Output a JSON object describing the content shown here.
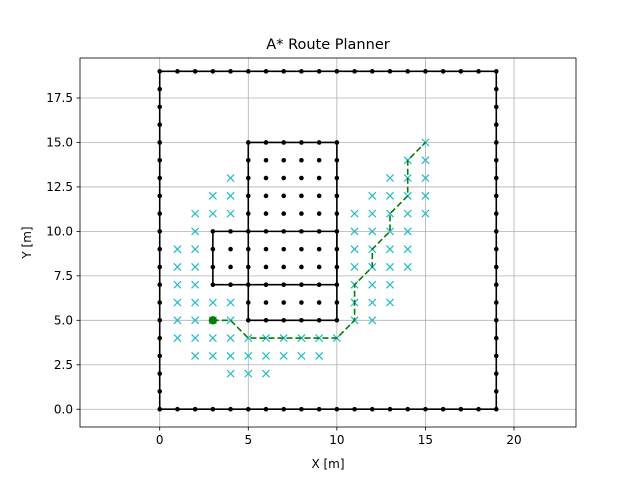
{
  "chart_data": {
    "type": "scatter",
    "title": "A* Route Planner",
    "xlabel": "X [m]",
    "ylabel": "Y [m]",
    "xlim": [
      -4.5,
      23.5
    ],
    "ylim": [
      -1,
      19.75
    ],
    "xticks": [
      0,
      5,
      10,
      15,
      20
    ],
    "xtick_labels": [
      "0",
      "5",
      "10",
      "15",
      "20"
    ],
    "yticks": [
      0,
      2.5,
      5,
      7.5,
      10,
      12.5,
      15,
      17.5
    ],
    "ytick_labels": [
      "0.0",
      "2.5",
      "5.0",
      "7.5",
      "10.0",
      "12.5",
      "15.0",
      "17.5"
    ],
    "grid": true,
    "colors": {
      "obstacle": "#000000",
      "explored": "#17becf",
      "path": "#008000",
      "start": "#008000"
    },
    "obstacle_boundary_lines": [
      [
        [
          0,
          0
        ],
        [
          19,
          0
        ],
        [
          19,
          19
        ],
        [
          0,
          19
        ],
        [
          0,
          0
        ]
      ],
      [
        [
          5,
          5
        ],
        [
          10,
          5
        ],
        [
          10,
          15
        ],
        [
          5,
          15
        ],
        [
          5,
          5
        ]
      ],
      [
        [
          3,
          7
        ],
        [
          10,
          7
        ],
        [
          10,
          10
        ],
        [
          3,
          10
        ],
        [
          3,
          7
        ]
      ]
    ],
    "obstacle_points": [
      [
        0,
        0
      ],
      [
        1,
        0
      ],
      [
        2,
        0
      ],
      [
        3,
        0
      ],
      [
        4,
        0
      ],
      [
        5,
        0
      ],
      [
        6,
        0
      ],
      [
        7,
        0
      ],
      [
        8,
        0
      ],
      [
        9,
        0
      ],
      [
        10,
        0
      ],
      [
        11,
        0
      ],
      [
        12,
        0
      ],
      [
        13,
        0
      ],
      [
        14,
        0
      ],
      [
        15,
        0
      ],
      [
        16,
        0
      ],
      [
        17,
        0
      ],
      [
        18,
        0
      ],
      [
        19,
        0
      ],
      [
        0,
        19
      ],
      [
        1,
        19
      ],
      [
        2,
        19
      ],
      [
        3,
        19
      ],
      [
        4,
        19
      ],
      [
        5,
        19
      ],
      [
        6,
        19
      ],
      [
        7,
        19
      ],
      [
        8,
        19
      ],
      [
        9,
        19
      ],
      [
        10,
        19
      ],
      [
        11,
        19
      ],
      [
        12,
        19
      ],
      [
        13,
        19
      ],
      [
        14,
        19
      ],
      [
        15,
        19
      ],
      [
        16,
        19
      ],
      [
        17,
        19
      ],
      [
        18,
        19
      ],
      [
        19,
        19
      ],
      [
        0,
        1
      ],
      [
        0,
        2
      ],
      [
        0,
        3
      ],
      [
        0,
        4
      ],
      [
        0,
        5
      ],
      [
        0,
        6
      ],
      [
        0,
        7
      ],
      [
        0,
        8
      ],
      [
        0,
        9
      ],
      [
        0,
        10
      ],
      [
        0,
        11
      ],
      [
        0,
        12
      ],
      [
        0,
        13
      ],
      [
        0,
        14
      ],
      [
        0,
        15
      ],
      [
        0,
        16
      ],
      [
        0,
        17
      ],
      [
        0,
        18
      ],
      [
        19,
        1
      ],
      [
        19,
        2
      ],
      [
        19,
        3
      ],
      [
        19,
        4
      ],
      [
        19,
        5
      ],
      [
        19,
        6
      ],
      [
        19,
        7
      ],
      [
        19,
        8
      ],
      [
        19,
        9
      ],
      [
        19,
        10
      ],
      [
        19,
        11
      ],
      [
        19,
        12
      ],
      [
        19,
        13
      ],
      [
        19,
        14
      ],
      [
        19,
        15
      ],
      [
        19,
        16
      ],
      [
        19,
        17
      ],
      [
        19,
        18
      ],
      [
        5,
        5
      ],
      [
        6,
        5
      ],
      [
        7,
        5
      ],
      [
        8,
        5
      ],
      [
        9,
        5
      ],
      [
        10,
        5
      ],
      [
        5,
        6
      ],
      [
        6,
        6
      ],
      [
        7,
        6
      ],
      [
        8,
        6
      ],
      [
        9,
        6
      ],
      [
        10,
        6
      ],
      [
        5,
        7
      ],
      [
        6,
        7
      ],
      [
        7,
        7
      ],
      [
        8,
        7
      ],
      [
        9,
        7
      ],
      [
        10,
        7
      ],
      [
        5,
        8
      ],
      [
        6,
        8
      ],
      [
        7,
        8
      ],
      [
        8,
        8
      ],
      [
        9,
        8
      ],
      [
        10,
        8
      ],
      [
        5,
        9
      ],
      [
        6,
        9
      ],
      [
        7,
        9
      ],
      [
        8,
        9
      ],
      [
        9,
        9
      ],
      [
        10,
        9
      ],
      [
        5,
        10
      ],
      [
        6,
        10
      ],
      [
        7,
        10
      ],
      [
        8,
        10
      ],
      [
        9,
        10
      ],
      [
        10,
        10
      ],
      [
        5,
        11
      ],
      [
        6,
        11
      ],
      [
        7,
        11
      ],
      [
        8,
        11
      ],
      [
        9,
        11
      ],
      [
        10,
        11
      ],
      [
        5,
        12
      ],
      [
        6,
        12
      ],
      [
        7,
        12
      ],
      [
        8,
        12
      ],
      [
        9,
        12
      ],
      [
        10,
        12
      ],
      [
        5,
        13
      ],
      [
        6,
        13
      ],
      [
        7,
        13
      ],
      [
        8,
        13
      ],
      [
        9,
        13
      ],
      [
        10,
        13
      ],
      [
        5,
        14
      ],
      [
        6,
        14
      ],
      [
        7,
        14
      ],
      [
        8,
        14
      ],
      [
        9,
        14
      ],
      [
        10,
        14
      ],
      [
        5,
        15
      ],
      [
        6,
        15
      ],
      [
        7,
        15
      ],
      [
        8,
        15
      ],
      [
        9,
        15
      ],
      [
        10,
        15
      ],
      [
        3,
        7
      ],
      [
        4,
        7
      ],
      [
        3,
        8
      ],
      [
        4,
        8
      ],
      [
        3,
        9
      ],
      [
        4,
        9
      ],
      [
        3,
        10
      ],
      [
        4,
        10
      ]
    ],
    "explored_points": [
      [
        1,
        4
      ],
      [
        1,
        5
      ],
      [
        1,
        6
      ],
      [
        1,
        7
      ],
      [
        1,
        8
      ],
      [
        1,
        9
      ],
      [
        2,
        3
      ],
      [
        2,
        4
      ],
      [
        2,
        5
      ],
      [
        2,
        6
      ],
      [
        2,
        7
      ],
      [
        2,
        8
      ],
      [
        2,
        9
      ],
      [
        2,
        10
      ],
      [
        2,
        11
      ],
      [
        3,
        3
      ],
      [
        3,
        4
      ],
      [
        3,
        5
      ],
      [
        3,
        6
      ],
      [
        3,
        11
      ],
      [
        3,
        12
      ],
      [
        4,
        2
      ],
      [
        4,
        3
      ],
      [
        4,
        4
      ],
      [
        4,
        5
      ],
      [
        4,
        6
      ],
      [
        4,
        11
      ],
      [
        4,
        12
      ],
      [
        4,
        13
      ],
      [
        5,
        2
      ],
      [
        5,
        3
      ],
      [
        5,
        4
      ],
      [
        6,
        2
      ],
      [
        6,
        3
      ],
      [
        6,
        4
      ],
      [
        7,
        3
      ],
      [
        7,
        4
      ],
      [
        8,
        3
      ],
      [
        8,
        4
      ],
      [
        9,
        3
      ],
      [
        9,
        4
      ],
      [
        10,
        4
      ],
      [
        11,
        5
      ],
      [
        11,
        6
      ],
      [
        11,
        7
      ],
      [
        11,
        8
      ],
      [
        11,
        9
      ],
      [
        11,
        10
      ],
      [
        11,
        11
      ],
      [
        12,
        5
      ],
      [
        12,
        6
      ],
      [
        12,
        7
      ],
      [
        12,
        8
      ],
      [
        12,
        9
      ],
      [
        12,
        10
      ],
      [
        12,
        11
      ],
      [
        12,
        12
      ],
      [
        13,
        6
      ],
      [
        13,
        7
      ],
      [
        13,
        8
      ],
      [
        13,
        9
      ],
      [
        13,
        10
      ],
      [
        13,
        11
      ],
      [
        13,
        12
      ],
      [
        13,
        13
      ],
      [
        14,
        8
      ],
      [
        14,
        9
      ],
      [
        14,
        10
      ],
      [
        14,
        11
      ],
      [
        14,
        12
      ],
      [
        14,
        13
      ],
      [
        14,
        14
      ],
      [
        15,
        11
      ],
      [
        15,
        12
      ],
      [
        15,
        13
      ],
      [
        15,
        14
      ],
      [
        15,
        15
      ]
    ],
    "path": [
      [
        3,
        5
      ],
      [
        4,
        5
      ],
      [
        5,
        4
      ],
      [
        6,
        4
      ],
      [
        7,
        4
      ],
      [
        8,
        4
      ],
      [
        9,
        4
      ],
      [
        10,
        4
      ],
      [
        11,
        5
      ],
      [
        11,
        6
      ],
      [
        11,
        7
      ],
      [
        12,
        8
      ],
      [
        12,
        9
      ],
      [
        13,
        10
      ],
      [
        13,
        11
      ],
      [
        14,
        12
      ],
      [
        14,
        13
      ],
      [
        14,
        14
      ],
      [
        15,
        15
      ]
    ],
    "start_point": [
      3,
      5
    ]
  }
}
